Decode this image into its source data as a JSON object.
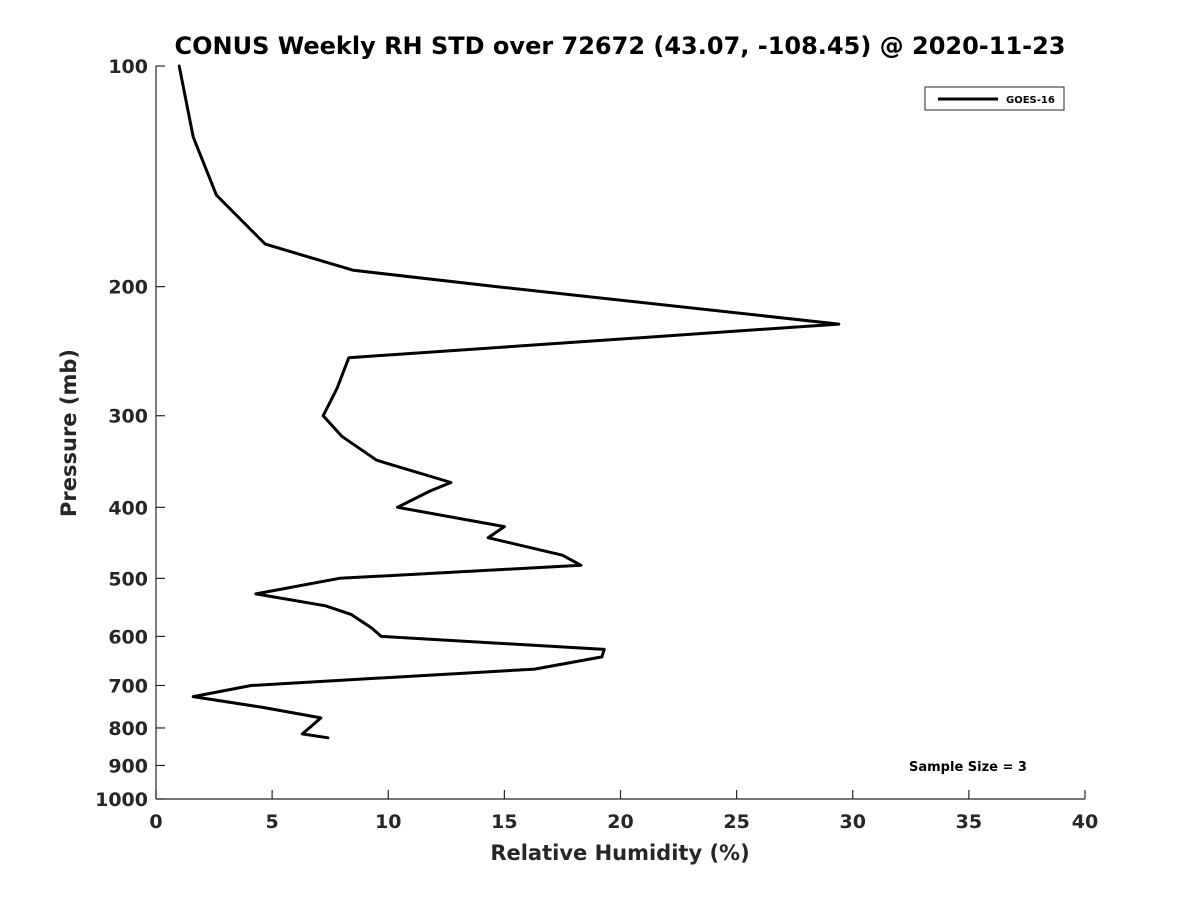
{
  "chart_data": {
    "type": "line",
    "title": "CONUS Weekly RH STD over 72672 (43.07, -108.45) @ 2020-11-23",
    "xlabel": "Relative Humidity (%)",
    "ylabel": "Pressure (mb)",
    "xlim": [
      0,
      40
    ],
    "ylim": [
      100,
      1000
    ],
    "yscale": "log",
    "y_reversed": true,
    "grid": false,
    "legend_position": "top-right",
    "x_ticks": [
      0,
      5,
      10,
      15,
      20,
      25,
      30,
      35,
      40
    ],
    "y_ticks": [
      100,
      200,
      300,
      400,
      500,
      600,
      700,
      800,
      900,
      1000
    ],
    "series": [
      {
        "name": "GOES-16",
        "color": "#000000",
        "points": [
          {
            "x": 1.0,
            "y": 100
          },
          {
            "x": 1.6,
            "y": 125
          },
          {
            "x": 2.6,
            "y": 150
          },
          {
            "x": 4.7,
            "y": 175
          },
          {
            "x": 8.5,
            "y": 190
          },
          {
            "x": 14.7,
            "y": 200
          },
          {
            "x": 29.4,
            "y": 225
          },
          {
            "x": 8.3,
            "y": 250
          },
          {
            "x": 7.8,
            "y": 275
          },
          {
            "x": 7.2,
            "y": 300
          },
          {
            "x": 8.0,
            "y": 320
          },
          {
            "x": 9.5,
            "y": 345
          },
          {
            "x": 12.7,
            "y": 370
          },
          {
            "x": 11.8,
            "y": 380
          },
          {
            "x": 10.4,
            "y": 400
          },
          {
            "x": 15.0,
            "y": 425
          },
          {
            "x": 14.3,
            "y": 440
          },
          {
            "x": 17.5,
            "y": 465
          },
          {
            "x": 18.3,
            "y": 480
          },
          {
            "x": 7.9,
            "y": 500
          },
          {
            "x": 4.3,
            "y": 525
          },
          {
            "x": 7.3,
            "y": 545
          },
          {
            "x": 8.4,
            "y": 560
          },
          {
            "x": 9.3,
            "y": 585
          },
          {
            "x": 9.7,
            "y": 600
          },
          {
            "x": 19.3,
            "y": 625
          },
          {
            "x": 19.2,
            "y": 640
          },
          {
            "x": 16.3,
            "y": 665
          },
          {
            "x": 4.1,
            "y": 700
          },
          {
            "x": 1.6,
            "y": 725
          },
          {
            "x": 4.6,
            "y": 750
          },
          {
            "x": 7.1,
            "y": 775
          },
          {
            "x": 6.6,
            "y": 800
          },
          {
            "x": 6.3,
            "y": 815
          },
          {
            "x": 7.4,
            "y": 825
          }
        ]
      }
    ],
    "annotations": [
      "Sample Size = 3"
    ]
  }
}
